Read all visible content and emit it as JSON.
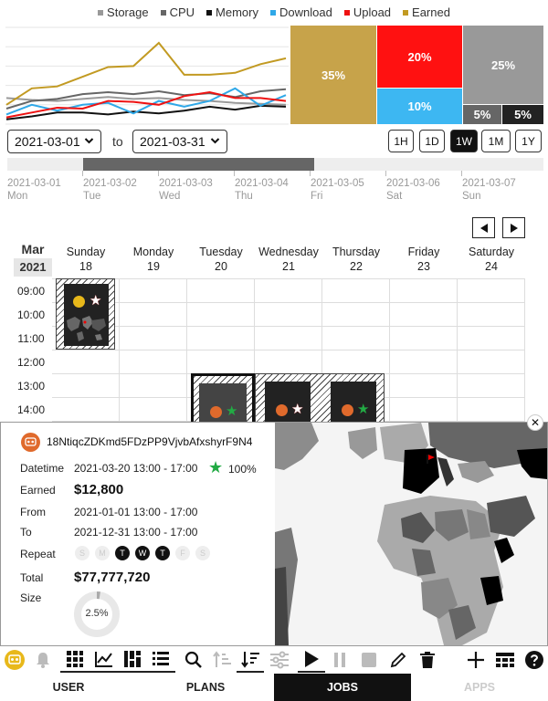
{
  "chart_data": [
    {
      "type": "line",
      "series": [
        {
          "name": "Storage",
          "color": "#999999",
          "values": [
            27,
            25,
            24,
            26,
            28,
            26,
            27,
            25,
            24,
            22,
            21,
            20
          ]
        },
        {
          "name": "CPU",
          "color": "#666666",
          "values": [
            16,
            24,
            26,
            31,
            33,
            31,
            34,
            30,
            32,
            28,
            34,
            36
          ]
        },
        {
          "name": "Memory",
          "color": "#111111",
          "values": [
            5,
            8,
            12,
            12,
            10,
            13,
            11,
            14,
            18,
            15,
            19,
            18
          ]
        },
        {
          "name": "Download",
          "color": "#2fa8e8",
          "values": [
            10,
            20,
            14,
            20,
            22,
            11,
            24,
            18,
            24,
            37,
            19,
            30
          ]
        },
        {
          "name": "Upload",
          "color": "#ee1111",
          "values": [
            7,
            12,
            17,
            16,
            24,
            23,
            20,
            29,
            33,
            27,
            27,
            24
          ]
        },
        {
          "name": "Earned",
          "color": "#c29a22",
          "values": [
            20,
            37,
            39,
            49,
            59,
            60,
            84,
            51,
            51,
            53,
            62,
            68
          ]
        }
      ],
      "ylim": [
        0,
        100
      ],
      "grid": true
    },
    {
      "type": "treemap",
      "slices": [
        {
          "value": 35,
          "label": "35%",
          "color": "#c7a34a"
        },
        {
          "value": 20,
          "label": "20%",
          "color": "#ff1111"
        },
        {
          "value": 10,
          "label": "10%",
          "color": "#3db7f2"
        },
        {
          "value": 25,
          "label": "25%",
          "color": "#999999"
        },
        {
          "value": 5,
          "label": "5%",
          "color": "#666666"
        },
        {
          "value": 5,
          "label": "5%",
          "color": "#222222"
        }
      ]
    }
  ],
  "legend": [
    "Storage",
    "CPU",
    "Memory",
    "Download",
    "Upload",
    "Earned"
  ],
  "date_range": {
    "from": "2021-03-01",
    "to_label": "to",
    "to": "2021-03-31"
  },
  "range_buttons": [
    "1H",
    "1D",
    "1W",
    "1M",
    "1Y"
  ],
  "active_range": "1W",
  "timeline": {
    "labels": [
      {
        "date": "2021-03-01",
        "day": "Mon"
      },
      {
        "date": "2021-03-02",
        "day": "Tue"
      },
      {
        "date": "2021-03-03",
        "day": "Wed"
      },
      {
        "date": "2021-03-04",
        "day": "Thu"
      },
      {
        "date": "2021-03-05",
        "day": "Fri"
      },
      {
        "date": "2021-03-06",
        "day": "Sat"
      },
      {
        "date": "2021-03-07",
        "day": "Sun"
      }
    ]
  },
  "calendar": {
    "month": "Mar",
    "year": "2021",
    "days": [
      {
        "name": "Sunday",
        "num": "18"
      },
      {
        "name": "Monday",
        "num": "19"
      },
      {
        "name": "Tuesday",
        "num": "20"
      },
      {
        "name": "Wednesday",
        "num": "21"
      },
      {
        "name": "Thursday",
        "num": "22"
      },
      {
        "name": "Friday",
        "num": "23"
      },
      {
        "name": "Saturday",
        "num": "24"
      }
    ],
    "hours": [
      "09:00",
      "10:00",
      "11:00",
      "12:00",
      "13:00",
      "14:00"
    ]
  },
  "detail": {
    "id": "18NtiqcZDKmd5FDzPP9VjvbAfxshyrF9N4",
    "datetime_label": "Datetime",
    "datetime": "2021-03-20 13:00 - 17:00",
    "rating": "100%",
    "earned_label": "Earned",
    "earned": "$12,800",
    "from_label": "From",
    "from": "2021-01-01 13:00 - 17:00",
    "to_label": "To",
    "to": "2021-12-31 13:00 - 17:00",
    "repeat_label": "Repeat",
    "repeat_days": [
      {
        "d": "S",
        "on": false
      },
      {
        "d": "M",
        "on": false
      },
      {
        "d": "T",
        "on": true
      },
      {
        "d": "W",
        "on": true
      },
      {
        "d": "T",
        "on": true
      },
      {
        "d": "F",
        "on": false
      },
      {
        "d": "S",
        "on": false
      }
    ],
    "total_label": "Total",
    "total": "$77,777,720",
    "size_label": "Size",
    "size_percent": 2.5,
    "size_text": "2.5%"
  },
  "tabs": [
    {
      "label": "USER",
      "state": "normal"
    },
    {
      "label": "PLANS",
      "state": "normal"
    },
    {
      "label": "JOBS",
      "state": "active"
    },
    {
      "label": "APPS",
      "state": "disabled"
    }
  ],
  "close_glyph": "✕"
}
